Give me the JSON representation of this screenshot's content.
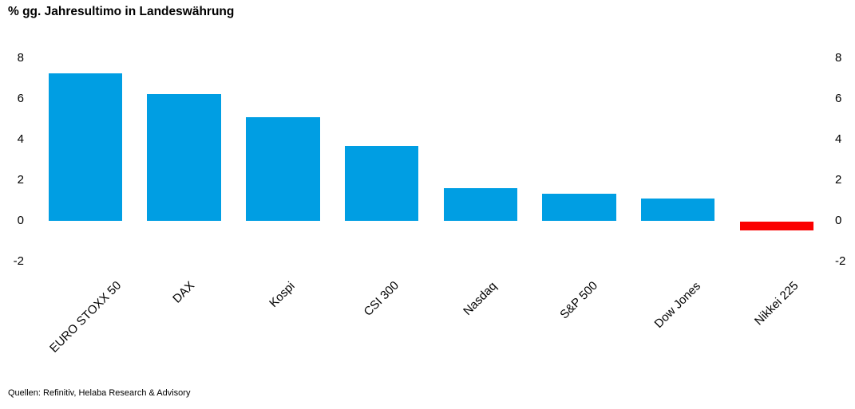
{
  "page": {
    "title": "% gg. Jahresultimo in Landeswährung",
    "source": "Quellen: Refinitiv, Helaba Research & Advisory"
  },
  "colors": {
    "positive_bar": "#009EE3",
    "negative_bar": "#FB0000",
    "text": "#000000",
    "background": "#FFFFFF"
  },
  "chart_data": {
    "type": "bar",
    "title": "% gg. Jahresultimo in Landeswährung",
    "categories": [
      "EURO STOXX 50",
      "DAX",
      "Kospi",
      "CSI 300",
      "Nasdaq",
      "S&P 500",
      "Dow Jones",
      "Nikkei 225"
    ],
    "values": [
      7.25,
      6.25,
      5.1,
      3.7,
      1.6,
      1.35,
      1.1,
      -0.45
    ],
    "bar_colors": [
      "#009EE3",
      "#009EE3",
      "#009EE3",
      "#009EE3",
      "#009EE3",
      "#009EE3",
      "#009EE3",
      "#FB0000"
    ],
    "xlabel": "",
    "ylabel": "",
    "ylim": [
      -2,
      8
    ],
    "yticks": [
      8,
      6,
      4,
      2,
      0,
      -2
    ],
    "grid": false,
    "legend": "none",
    "value_axis_sides": [
      "left",
      "right"
    ],
    "x_label_rotation_deg": 45,
    "source": "Quellen: Refinitiv, Helaba Research & Advisory"
  }
}
